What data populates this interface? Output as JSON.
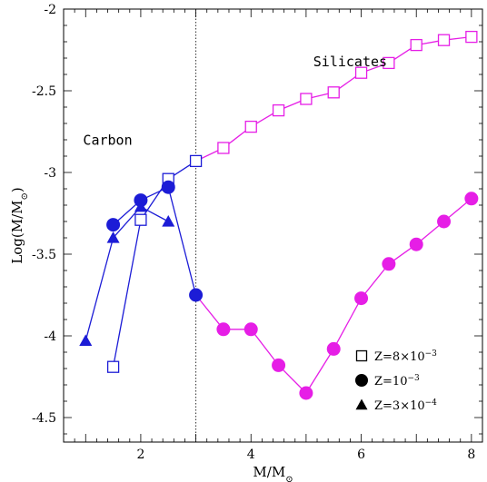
{
  "chart_data": {
    "type": "line",
    "xlabel": "M/M_⊙",
    "ylabel": "Log(M/M_⊙)",
    "xlim": [
      0.6,
      8.2
    ],
    "ylim": [
      -4.65,
      -2.0
    ],
    "x_ticks": [
      2,
      4,
      6,
      8
    ],
    "y_ticks": [
      -2,
      -2.5,
      -3,
      -3.5,
      -4,
      -4.5
    ],
    "x_tick_labels": [
      "2",
      "4",
      "6",
      "8"
    ],
    "y_tick_labels": [
      "-2",
      "-2.5",
      "-3",
      "-3.5",
      "-4",
      "-4.5"
    ],
    "grid": false,
    "vline_x": 3,
    "annotations": [
      {
        "text": "Silicates",
        "x": 5.8,
        "y": -2.35
      },
      {
        "text": "Carbon",
        "x": 1.4,
        "y": -2.83
      }
    ],
    "series": [
      {
        "name": "Z=8×10⁻³",
        "marker": "square",
        "x": [
          1.5,
          2.0,
          2.5,
          3.0,
          3.5,
          4.0,
          4.5,
          5.0,
          5.5,
          6.0,
          6.5,
          7.0,
          7.5,
          8.0
        ],
        "y": [
          -4.19,
          -3.29,
          -3.04,
          -2.93,
          -2.85,
          -2.72,
          -2.62,
          -2.55,
          -2.51,
          -2.39,
          -2.33,
          -2.22,
          -2.19,
          -2.17
        ],
        "colors": [
          "#1c1cd6",
          "#1c1cd6",
          "#1c1cd6",
          "#1c1cd6",
          "#e61ee6",
          "#e61ee6",
          "#e61ee6",
          "#e61ee6",
          "#e61ee6",
          "#e61ee6",
          "#e61ee6",
          "#e61ee6",
          "#e61ee6",
          "#e61ee6"
        ]
      },
      {
        "name": "Z=10⁻³",
        "marker": "circle",
        "x": [
          1.5,
          2.0,
          2.5,
          3.0,
          3.5,
          4.0,
          4.5,
          5.0,
          5.5,
          6.0,
          6.5,
          7.0,
          7.5,
          8.0
        ],
        "y": [
          -3.32,
          -3.17,
          -3.09,
          -3.75,
          -3.96,
          -3.96,
          -4.18,
          -4.35,
          -4.08,
          -3.77,
          -3.56,
          -3.44,
          -3.3,
          -3.16
        ],
        "colors": [
          "#1c1cd6",
          "#1c1cd6",
          "#1c1cd6",
          "#1c1cd6",
          "#e61ee6",
          "#e61ee6",
          "#e61ee6",
          "#e61ee6",
          "#e61ee6",
          "#e61ee6",
          "#e61ee6",
          "#e61ee6",
          "#e61ee6",
          "#e61ee6"
        ]
      },
      {
        "name": "Z=3×10⁻⁴",
        "marker": "triangle",
        "x": [
          1.0,
          1.5,
          2.0,
          2.5
        ],
        "y": [
          -4.03,
          -3.4,
          -3.21,
          -3.3
        ],
        "colors": [
          "#1c1cd6",
          "#1c1cd6",
          "#1c1cd6",
          "#1c1cd6"
        ]
      }
    ],
    "legend": {
      "placement": "bottom-right",
      "entries": [
        {
          "marker": "square",
          "label": "Z=8×10",
          "exp": "−3"
        },
        {
          "marker": "circle",
          "label": "Z=10",
          "exp": "−3"
        },
        {
          "marker": "triangle",
          "label": "Z=3×10",
          "exp": "−4"
        }
      ]
    },
    "colors": {
      "carbon": "#1c1cd6",
      "silicates": "#e61ee6",
      "axes": "#000000"
    }
  }
}
